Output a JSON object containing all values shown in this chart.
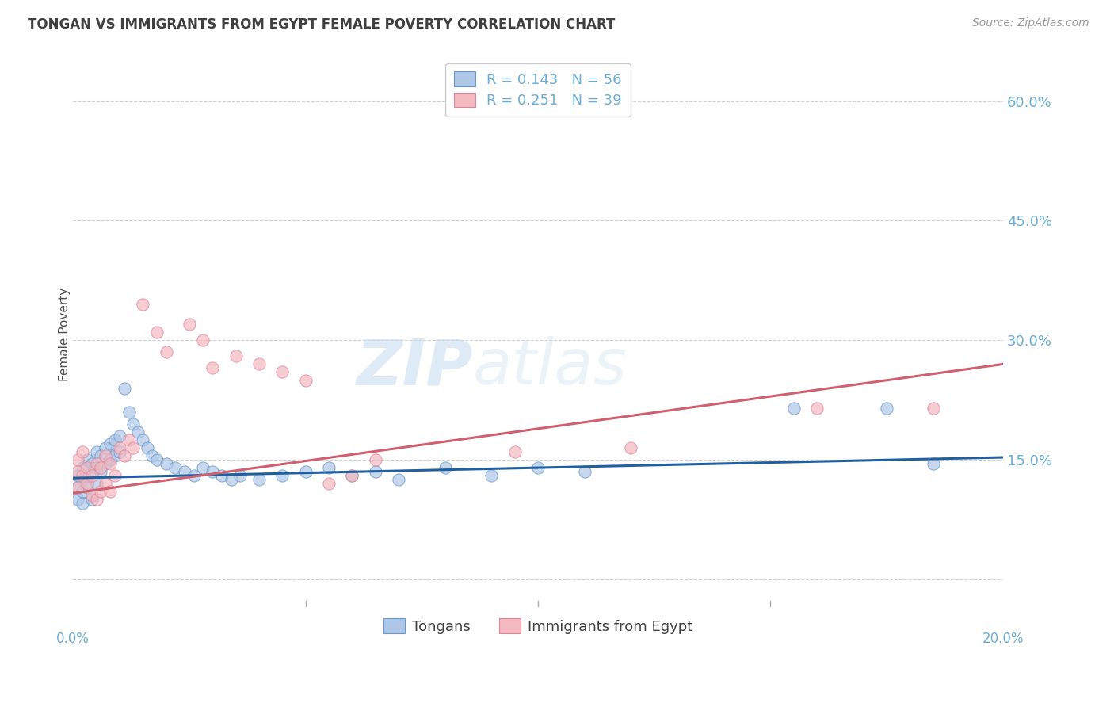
{
  "title": "TONGAN VS IMMIGRANTS FROM EGYPT FEMALE POVERTY CORRELATION CHART",
  "source": "Source: ZipAtlas.com",
  "ylabel": "Female Poverty",
  "yticks": [
    0.0,
    0.15,
    0.3,
    0.45,
    0.6
  ],
  "ytick_labels": [
    "",
    "15.0%",
    "30.0%",
    "45.0%",
    "60.0%"
  ],
  "xmin": 0.0,
  "xmax": 0.2,
  "ymin": -0.035,
  "ymax": 0.65,
  "legend_line1": "R = 0.143   N = 56",
  "legend_line2": "R = 0.251   N = 39",
  "legend_labels_bottom": [
    "Tongans",
    "Immigrants from Egypt"
  ],
  "watermark_zip": "ZIP",
  "watermark_atlas": "atlas",
  "title_color": "#404040",
  "tick_color": "#6baed6",
  "grid_color": "#d0d0d0",
  "background_color": "#ffffff",
  "scatter_blue_color": "#aec6e8",
  "scatter_blue_edge": "#6699cc",
  "scatter_pink_color": "#f4b8c1",
  "scatter_pink_edge": "#dd8899",
  "scatter_alpha": 0.7,
  "scatter_size": 120,
  "blue_line_color": "#2060a0",
  "pink_line_color": "#d06070",
  "blue_line_lw": 2.2,
  "pink_line_lw": 2.2,
  "tongans_x": [
    0.001,
    0.001,
    0.001,
    0.002,
    0.002,
    0.002,
    0.002,
    0.003,
    0.003,
    0.003,
    0.004,
    0.004,
    0.005,
    0.005,
    0.005,
    0.006,
    0.006,
    0.007,
    0.007,
    0.008,
    0.008,
    0.009,
    0.009,
    0.01,
    0.01,
    0.011,
    0.012,
    0.013,
    0.014,
    0.015,
    0.016,
    0.017,
    0.018,
    0.02,
    0.022,
    0.024,
    0.026,
    0.028,
    0.03,
    0.032,
    0.034,
    0.036,
    0.04,
    0.045,
    0.05,
    0.055,
    0.06,
    0.065,
    0.07,
    0.08,
    0.09,
    0.1,
    0.11,
    0.155,
    0.175,
    0.185
  ],
  "tongans_y": [
    0.13,
    0.115,
    0.1,
    0.14,
    0.125,
    0.11,
    0.095,
    0.15,
    0.13,
    0.115,
    0.145,
    0.1,
    0.16,
    0.14,
    0.12,
    0.155,
    0.135,
    0.165,
    0.145,
    0.17,
    0.15,
    0.175,
    0.155,
    0.18,
    0.16,
    0.24,
    0.21,
    0.195,
    0.185,
    0.175,
    0.165,
    0.155,
    0.15,
    0.145,
    0.14,
    0.135,
    0.13,
    0.14,
    0.135,
    0.13,
    0.125,
    0.13,
    0.125,
    0.13,
    0.135,
    0.14,
    0.13,
    0.135,
    0.125,
    0.14,
    0.13,
    0.14,
    0.135,
    0.215,
    0.215,
    0.145
  ],
  "egypt_x": [
    0.001,
    0.001,
    0.001,
    0.002,
    0.002,
    0.003,
    0.003,
    0.004,
    0.004,
    0.005,
    0.005,
    0.006,
    0.006,
    0.007,
    0.007,
    0.008,
    0.008,
    0.009,
    0.01,
    0.011,
    0.012,
    0.013,
    0.015,
    0.018,
    0.02,
    0.025,
    0.028,
    0.03,
    0.035,
    0.04,
    0.045,
    0.05,
    0.055,
    0.06,
    0.065,
    0.095,
    0.12,
    0.16,
    0.185
  ],
  "egypt_y": [
    0.15,
    0.135,
    0.115,
    0.16,
    0.13,
    0.14,
    0.12,
    0.13,
    0.105,
    0.145,
    0.1,
    0.14,
    0.11,
    0.155,
    0.12,
    0.145,
    0.11,
    0.13,
    0.165,
    0.155,
    0.175,
    0.165,
    0.345,
    0.31,
    0.285,
    0.32,
    0.3,
    0.265,
    0.28,
    0.27,
    0.26,
    0.25,
    0.12,
    0.13,
    0.15,
    0.16,
    0.165,
    0.215,
    0.215
  ],
  "blue_line_x": [
    0.0,
    0.2
  ],
  "blue_line_y": [
    0.127,
    0.153
  ],
  "pink_line_x": [
    0.0,
    0.2
  ],
  "pink_line_y": [
    0.108,
    0.27
  ]
}
